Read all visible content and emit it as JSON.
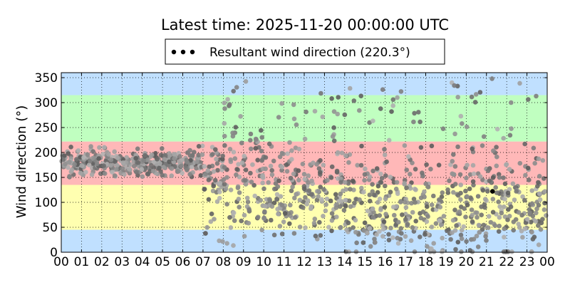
{
  "chart_data": {
    "type": "scatter",
    "title": "Latest time: 2025-11-20 00:00:00 UTC",
    "xlabel": "",
    "ylabel": "Wind direction (°)",
    "xlim": [
      0,
      24
    ],
    "ylim": [
      0,
      360
    ],
    "x_ticks": [
      "00",
      "01",
      "02",
      "03",
      "04",
      "05",
      "06",
      "07",
      "08",
      "09",
      "10",
      "11",
      "12",
      "13",
      "14",
      "15",
      "16",
      "17",
      "18",
      "19",
      "20",
      "21",
      "22",
      "23",
      "00"
    ],
    "y_ticks": [
      0,
      50,
      100,
      150,
      200,
      250,
      300,
      350
    ],
    "grid": true,
    "legend": {
      "placement": "top-center",
      "entries": [
        "Resultant wind direction (220.3°)"
      ]
    },
    "bands": [
      {
        "from": 0,
        "to": 45,
        "color": "#c0e0ff"
      },
      {
        "from": 45,
        "to": 135,
        "color": "#ffffb0"
      },
      {
        "from": 135,
        "to": 222,
        "color": "#ffb8b8"
      },
      {
        "from": 222,
        "to": 315,
        "color": "#c0ffc0"
      },
      {
        "from": 315,
        "to": 360,
        "color": "#c0e0ff"
      }
    ],
    "series": [
      {
        "name": "Resultant wind direction (220.3°)",
        "color": "#808080",
        "segments": [
          {
            "x_from": 0.0,
            "x_to": 7.0,
            "y_min": 150,
            "y_max": 215,
            "y_center": 178
          },
          {
            "x_from": 7.0,
            "x_to": 8.0,
            "y_min": 20,
            "y_max": 230,
            "y_center": 150
          },
          {
            "x_from": 8.0,
            "x_to": 10.0,
            "y_min": 0,
            "y_max": 350,
            "y_center": 140
          },
          {
            "x_from": 10.0,
            "x_to": 14.0,
            "y_min": 50,
            "y_max": 330,
            "y_center": 120
          },
          {
            "x_from": 14.0,
            "x_to": 19.0,
            "y_min": 15,
            "y_max": 340,
            "y_center": 85
          },
          {
            "x_from": 19.0,
            "x_to": 24.0,
            "y_min": 10,
            "y_max": 355,
            "y_center": 95
          }
        ]
      }
    ],
    "latest_point": {
      "x": 21.3,
      "y": 122
    }
  }
}
